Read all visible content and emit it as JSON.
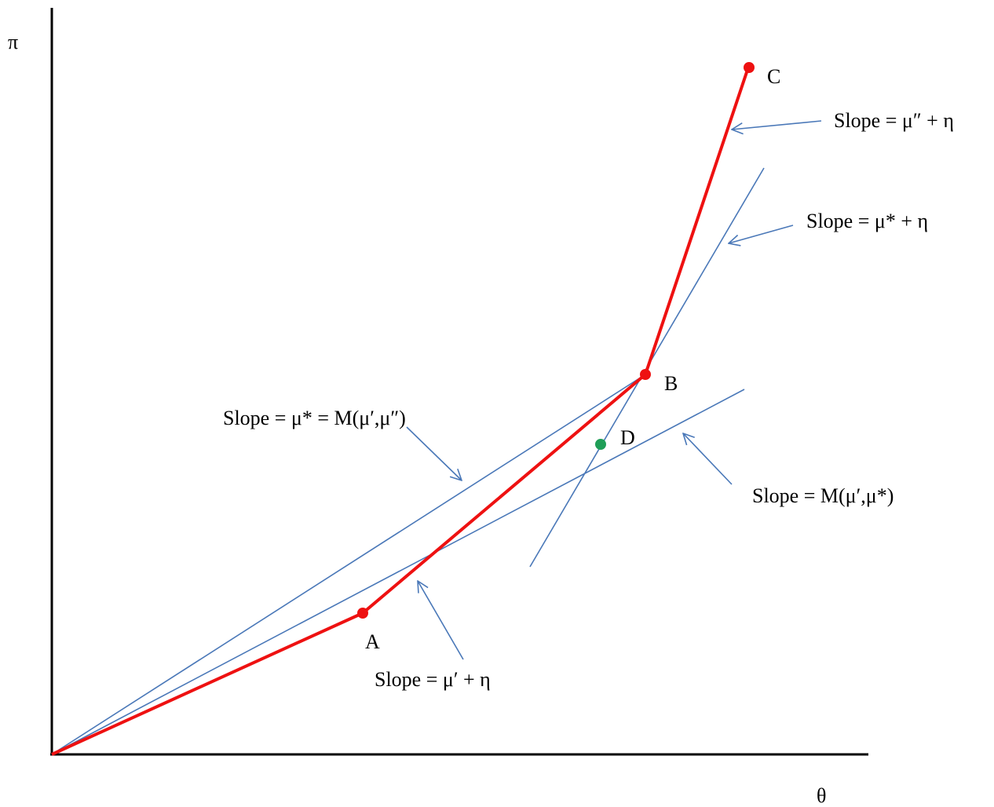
{
  "axes": {
    "y_label": "π",
    "x_label": "θ"
  },
  "points": {
    "a": "A",
    "b": "B",
    "c": "C",
    "d": "D"
  },
  "annotations": {
    "slope_mu_double_prime": "Slope = μ″ + η",
    "slope_mu_star": "Slope = μ* + η",
    "slope_mu_star_mean": "Slope = μ* = M(μ′,μ″)",
    "slope_mean_mu_star": "Slope = M(μ′,μ*)",
    "slope_mu_prime": "Slope = μ′ + η"
  },
  "colors": {
    "axis": "#000000",
    "profit_path": "#ee1111",
    "slope_lines": "#4a78b8",
    "point_d": "#1f9e57"
  }
}
